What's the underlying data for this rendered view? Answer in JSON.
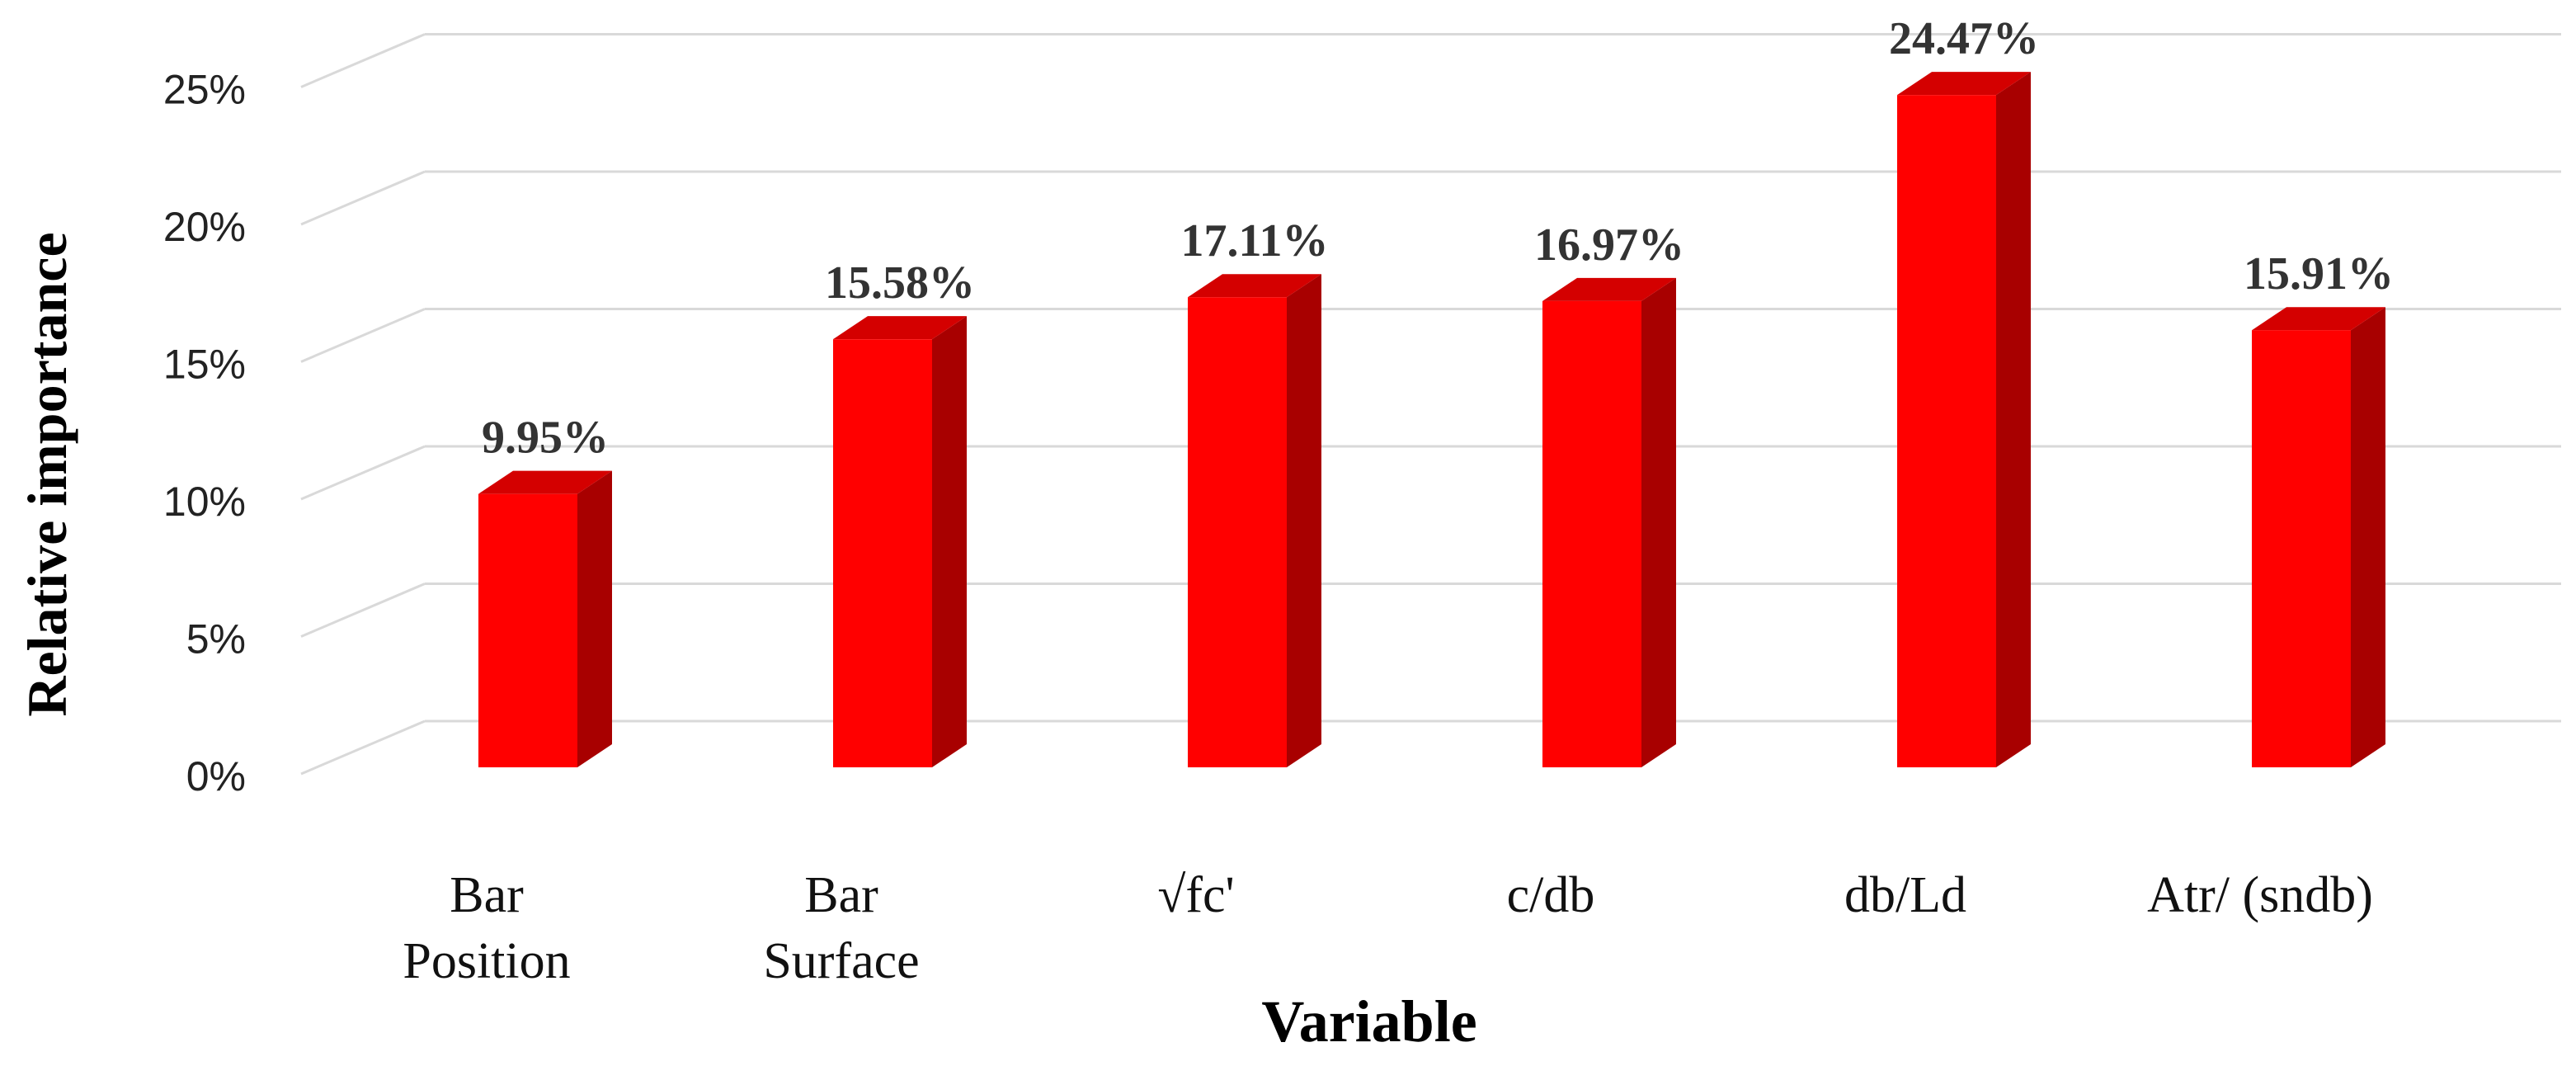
{
  "chart_data": {
    "type": "bar",
    "style": "3d-column",
    "xlabel": "Variable",
    "ylabel": "Relative importance",
    "ylim": [
      0,
      25
    ],
    "yticks": [
      "0%",
      "5%",
      "10%",
      "15%",
      "20%",
      "25%"
    ],
    "categories": [
      [
        "Bar",
        "Position"
      ],
      [
        "Bar",
        "Surface"
      ],
      [
        "√fc'"
      ],
      [
        "c/db"
      ],
      [
        "db/Ld"
      ],
      [
        "Atr/ (sndb)"
      ]
    ],
    "values": [
      9.95,
      15.58,
      17.11,
      16.97,
      24.47,
      15.91
    ],
    "data_labels": [
      "9.95%",
      "15.58%",
      "17.11%",
      "16.97%",
      "24.47%",
      "15.91%"
    ],
    "grid": true,
    "legend": "none",
    "colors": {
      "bar_front": "#ff0000",
      "bar_side": "#a80000",
      "bar_top": "#d40000",
      "grid": "#d9d9d9"
    }
  }
}
